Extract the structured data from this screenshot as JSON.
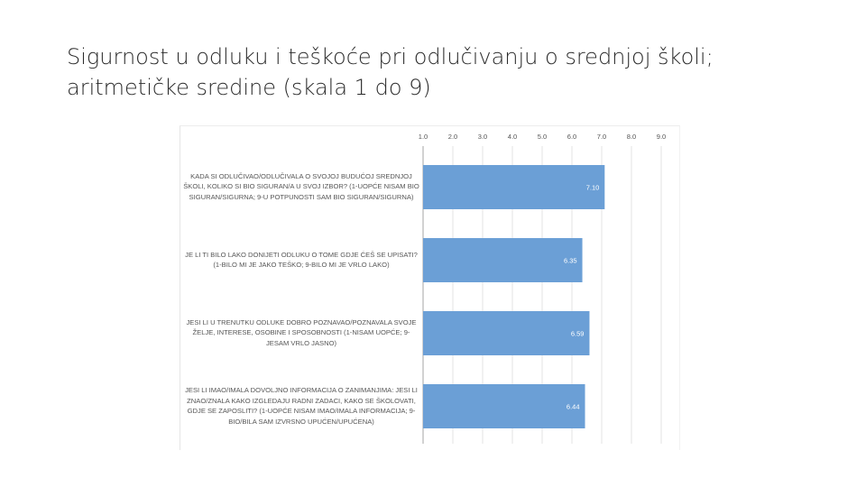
{
  "slide": {
    "title_line1": "Sigurnost u odluku i teškoće pri odlučivanju o srednjoj školi;",
    "title_line2": "aritmetičke sredine (skala 1 do 9)"
  },
  "chart_data": {
    "type": "bar",
    "orientation": "horizontal",
    "xlim": [
      1.0,
      9.0
    ],
    "x_ticks": [
      "1.0",
      "2.0",
      "3.0",
      "4.0",
      "5.0",
      "6.0",
      "7.0",
      "8.0",
      "9.0"
    ],
    "tick_position": "top",
    "grid": true,
    "bar_color": "#6b9fd6",
    "categories": [
      "KADA SI ODLUČIVAO/ODLUČIVALA O SVOJOJ BUDUĆOJ SREDNJOJ ŠKOLI, KOLIKO SI BIO SIGURAN/A U SVOJ IZBOR? (1-UOPĆE NISAM BIO SIGURAN/SIGURNA; 9-U POTPUNOSTI SAM BIO SIGURAN/SIGURNA)",
      "JE LI TI BILO LAKO DONIJETI ODLUKU O TOME GDJE ĆEŠ SE UPISATI? (1-BILO MI JE JAKO TEŠKO; 9-BILO MI JE VRLO LAKO)",
      "JESI LI U TRENUTKU ODLUKE DOBRO POZNAVAO/POZNAVALA SVOJE ŽELJE, INTERESE, OSOBINE I SPOSOBNOSTI (1-NISAM UOPĆE; 9-JESAM VRLO JASNO)",
      "JESI LI IMAO/IMALA DOVOLJNO INFORMACIJA O ZANIMANJIMA: JESI LI ZNAO/ZNALA KAKO IZGLEDAJU RADNI ZADACI, KAKO SE ŠKOLOVATI, GDJE SE ZAPOSLITI? (1-UOPĆE NISAM IMAO/IMALA INFORMACIJA; 9-BIO/BILA SAM IZVRSNO UPUĆEN/UPUĆENA)"
    ],
    "values": [
      7.1,
      6.35,
      6.59,
      6.44
    ],
    "data_labels": [
      "7.10",
      "6.35",
      "6.59",
      "6.44"
    ]
  }
}
